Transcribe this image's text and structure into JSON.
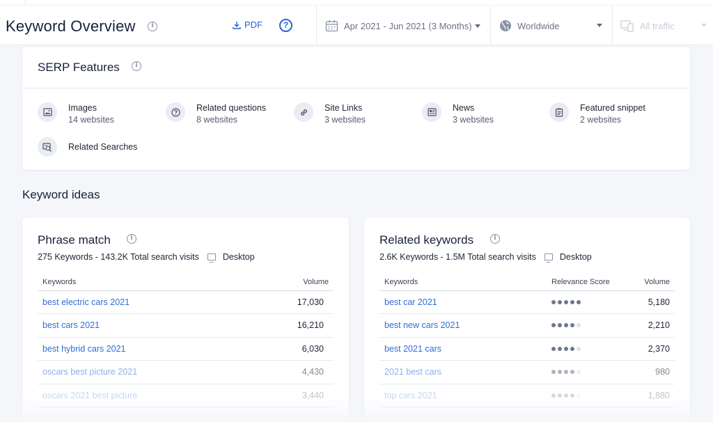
{
  "header": {
    "title": "Keyword Overview",
    "pdf_label": "PDF",
    "help_label": "?",
    "date_range": "Apr 2021 - Jun 2021 (3 Months)",
    "region": "Worldwide",
    "traffic": "All traffic"
  },
  "serp": {
    "title": "SERP Features",
    "features": [
      {
        "name": "Images",
        "count": "14 websites",
        "icon": "image-icon"
      },
      {
        "name": "Related questions",
        "count": "8 websites",
        "icon": "question-icon"
      },
      {
        "name": "Site Links",
        "count": "3 websites",
        "icon": "link-icon"
      },
      {
        "name": "News",
        "count": "3 websites",
        "icon": "news-icon"
      },
      {
        "name": "Featured snippet",
        "count": "2 websites",
        "icon": "snippet-icon"
      },
      {
        "name": "Related Searches",
        "count": "",
        "icon": "related-searches-icon"
      }
    ]
  },
  "ideas": {
    "title": "Keyword ideas",
    "phrase_match": {
      "title": "Phrase match",
      "summary": "275 Keywords - 143.2K Total search visits",
      "device": "Desktop",
      "col_keywords": "Keywords",
      "col_volume": "Volume",
      "rows": [
        {
          "keyword": "best electric cars 2021",
          "volume": "17,030"
        },
        {
          "keyword": "best cars 2021",
          "volume": "16,210"
        },
        {
          "keyword": "best hybrid cars 2021",
          "volume": "6,030"
        },
        {
          "keyword": "oscars best picture 2021",
          "volume": "4,430"
        },
        {
          "keyword": "oscars 2021 best picture",
          "volume": "3,440"
        }
      ]
    },
    "related": {
      "title": "Related keywords",
      "summary": "2.6K Keywords - 1.5M Total search visits",
      "device": "Desktop",
      "col_keywords": "Keywords",
      "col_relevance": "Relevance Score",
      "col_volume": "Volume",
      "rows": [
        {
          "keyword": "best car 2021",
          "relevance": 5,
          "volume": "5,180"
        },
        {
          "keyword": "best new cars 2021",
          "relevance": 4,
          "volume": "2,210"
        },
        {
          "keyword": "best 2021 cars",
          "relevance": 4,
          "volume": "2,370"
        },
        {
          "keyword": "2021 best cars",
          "relevance": 4,
          "volume": "980"
        },
        {
          "keyword": "top cars 2021",
          "relevance": 4,
          "volume": "1,880"
        }
      ]
    }
  }
}
